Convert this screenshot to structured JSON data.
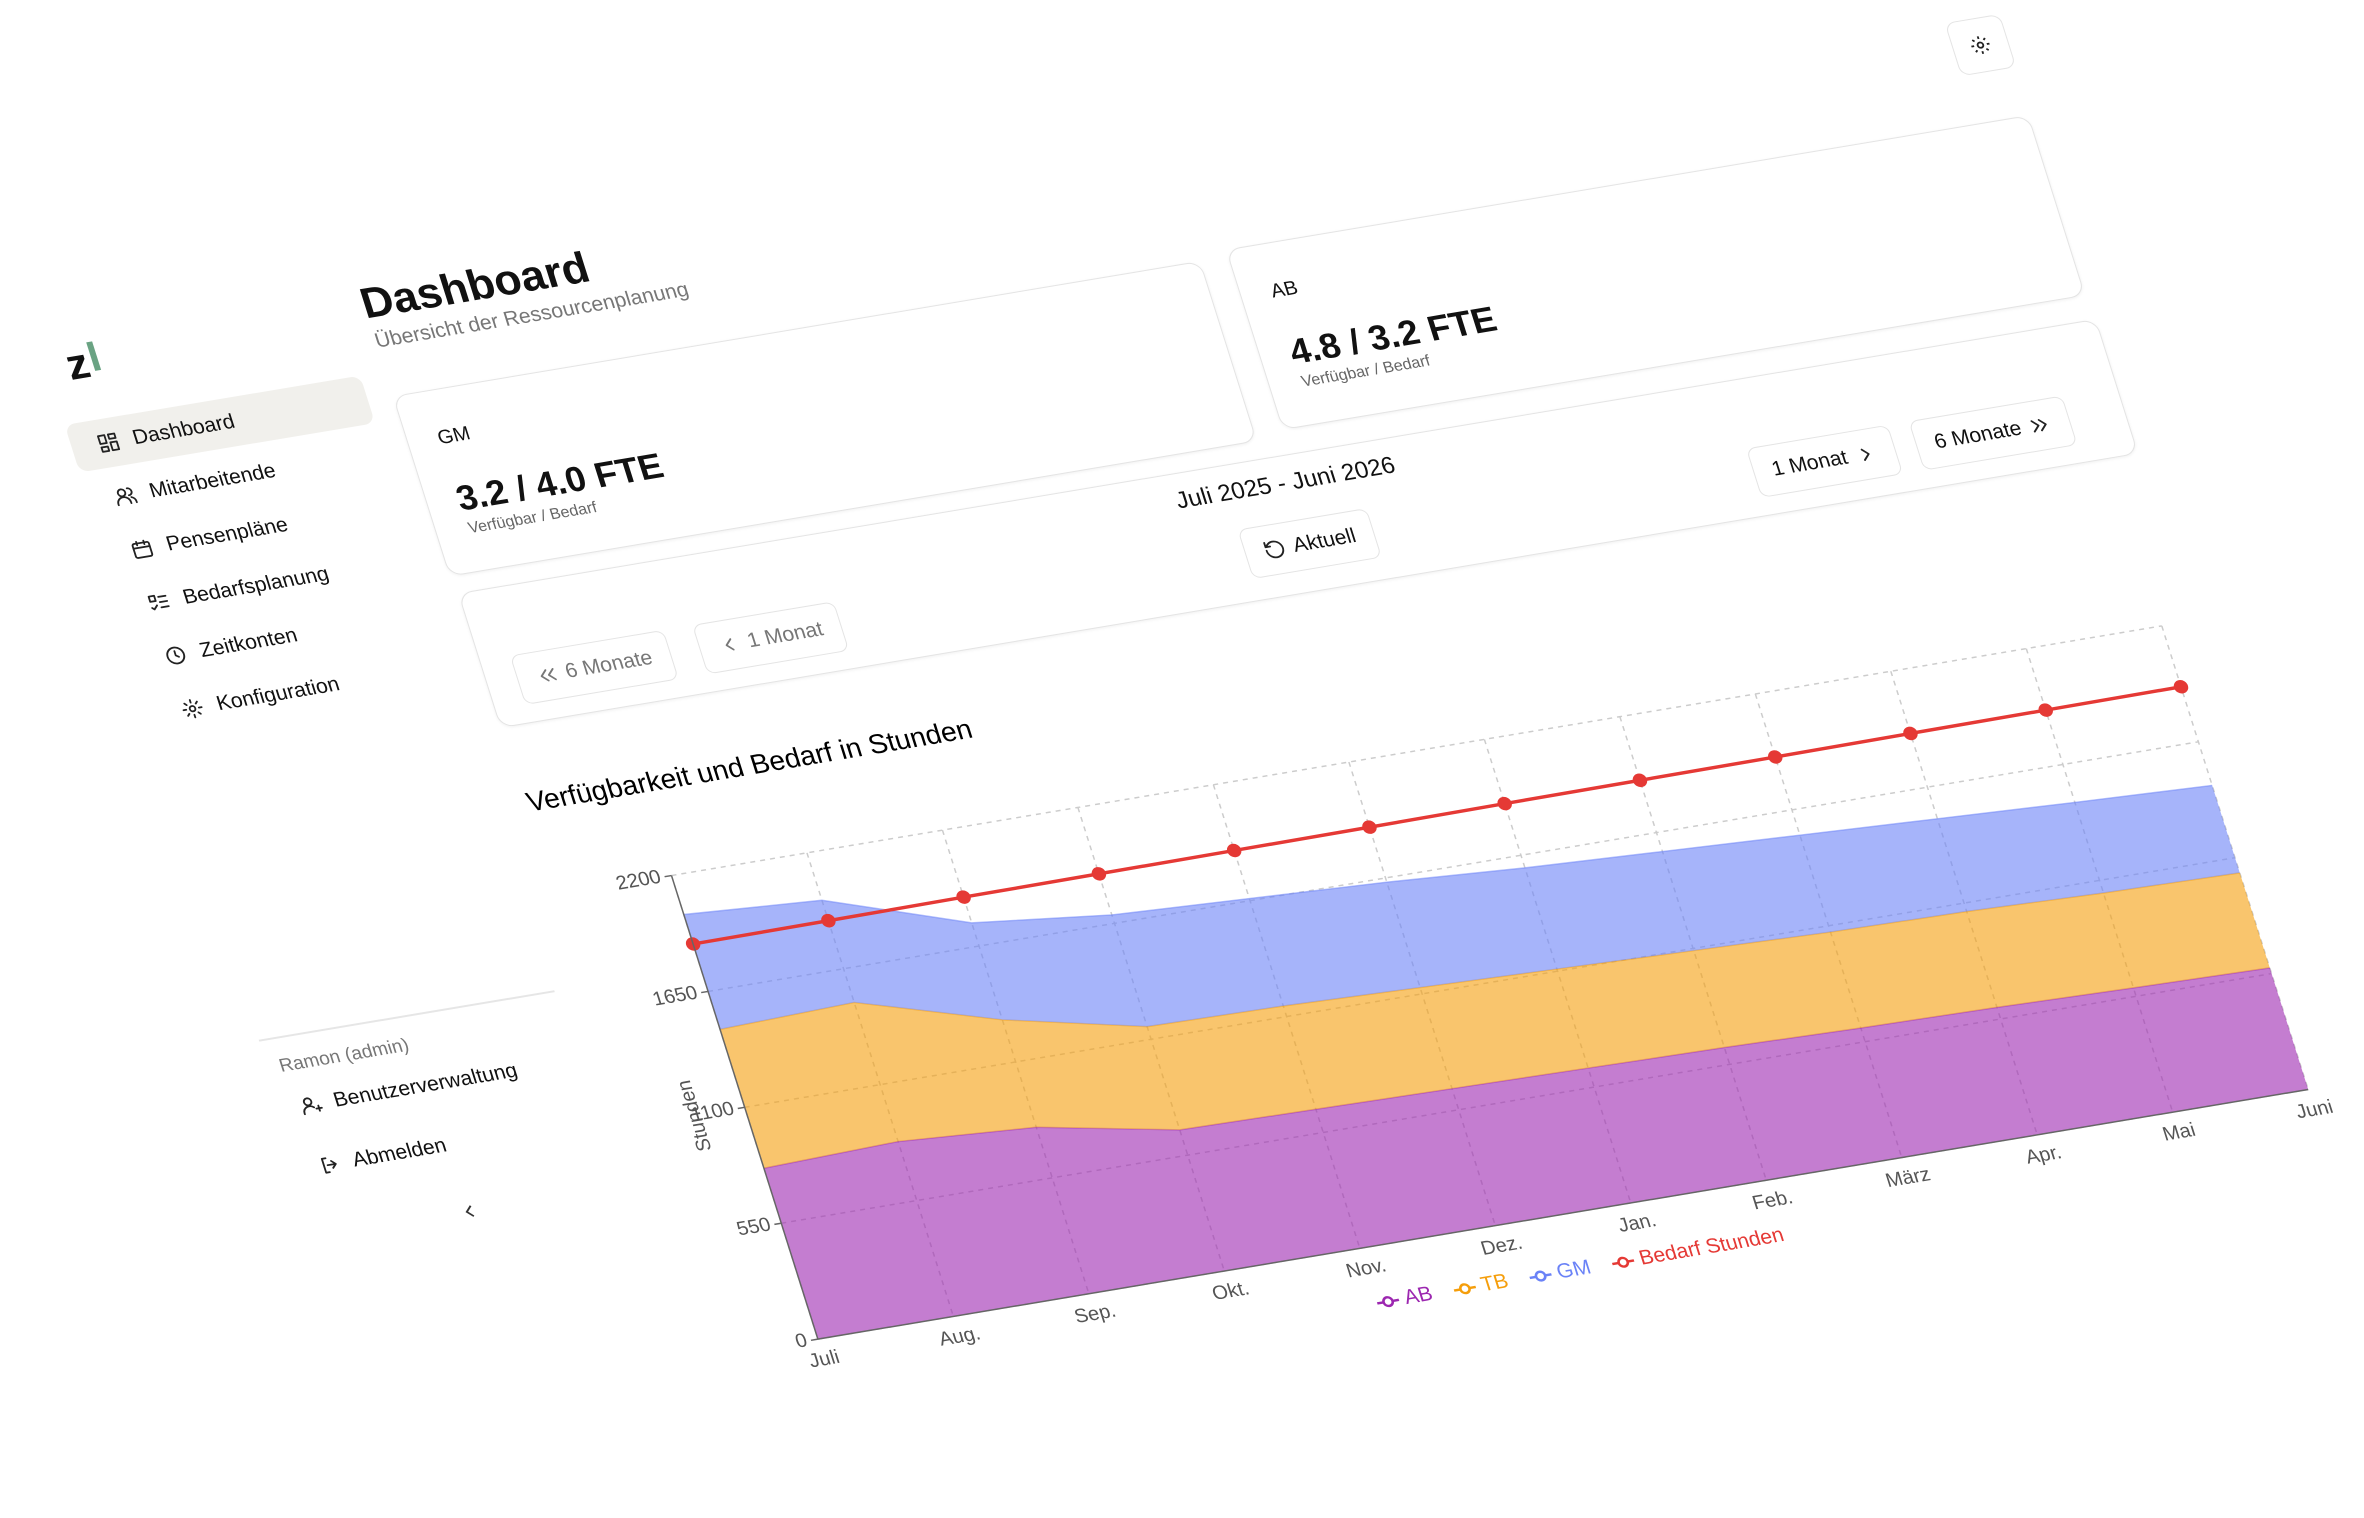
{
  "brand": "z",
  "sidebar": {
    "nav": [
      "Dashboard",
      "Mitarbeitende",
      "Pensenpläne",
      "Bedarfsplanung",
      "Zeitkonten",
      "Konfiguration"
    ],
    "user": "Ramon (admin)",
    "user_menu": [
      "Benutzerverwaltung",
      "Abmelden"
    ]
  },
  "header": {
    "title": "Dashboard",
    "subtitle": "Übersicht der Ressourcenplanung"
  },
  "cards": [
    {
      "label": "GM",
      "value": "3.2 / 4.0 FTE",
      "caption": "Verfügbar / Bedarf"
    },
    {
      "label": "AB",
      "value": "4.8 / 3.2 FTE",
      "caption": "Verfügbar / Bedarf"
    }
  ],
  "period": {
    "range": "Juli 2025 - Juni 2026",
    "current": "Aktuell",
    "back": [
      "6 Monate",
      "1 Monat"
    ],
    "forward": [
      "1 Monat",
      "6 Monate"
    ]
  },
  "chart_data": {
    "type": "area",
    "stacked": true,
    "title": "Verfügbarkeit und Bedarf in Stunden",
    "y_label": "Stunden",
    "categories": [
      "Juli",
      "Aug.",
      "Sep.",
      "Okt.",
      "Nov.",
      "Dez.",
      "Jan.",
      "Feb.",
      "März",
      "Apr.",
      "Mai",
      "Juni"
    ],
    "series": [
      {
        "name": "AB",
        "color": "#9c27b0",
        "values": [
          811,
          830,
          790,
          670,
          660,
          650,
          640,
          630,
          615,
          605,
          590,
          577
        ]
      },
      {
        "name": "TB",
        "color": "#f59e0b",
        "values": [
          659,
          660,
          510,
          490,
          490,
          480,
          470,
          460,
          455,
          455,
          450,
          451
        ]
      },
      {
        "name": "GM",
        "color": "#6a82f7",
        "values": [
          545,
          485,
          460,
          530,
          510,
          500,
          480,
          470,
          460,
          440,
          430,
          415
        ]
      },
      {
        "name": "Bedarf Stunden",
        "type": "line",
        "color": "#e53935",
        "values": [
          1875,
          1878,
          1882,
          1885,
          1888,
          1891,
          1895,
          1898,
          1901,
          1905,
          1908,
          1911
        ]
      }
    ],
    "ylim": [
      0,
      2200
    ],
    "yticks": [
      0,
      550,
      1100,
      1650,
      2200
    ],
    "grid": true,
    "legend": "bottom"
  }
}
